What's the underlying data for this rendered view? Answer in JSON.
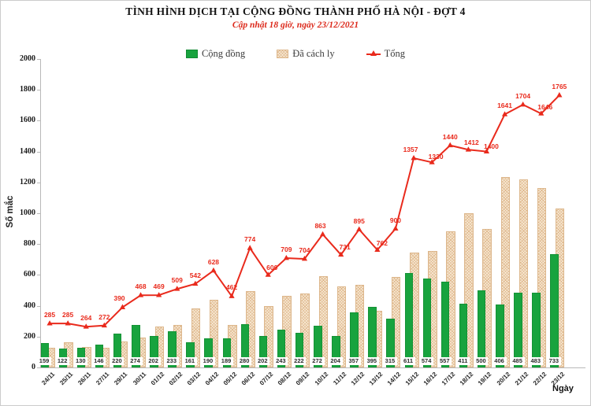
{
  "header": {
    "title": "TÌNH HÌNH DỊCH TẠI CỘNG ĐỒNG THÀNH PHỐ HÀ NỘI - ĐỢT 4",
    "subtitle": "Cập nhật 18 giờ, ngày 23/12/2021"
  },
  "colors": {
    "community_green": "#18a33e",
    "quarantine_tan": "#f8ead5",
    "quarantine_border": "#ddb78c",
    "total_red": "#e92a1c"
  },
  "chart_data": {
    "type": "bar",
    "title": "TÌNH HÌNH DỊCH TẠI CỘNG ĐỒNG THÀNH PHỐ HÀ NỘI - ĐỢT 4",
    "subtitle": "Cập nhật 18 giờ, ngày 23/12/2021",
    "xlabel": "Ngày",
    "ylabel": "Số mắc",
    "ylim": [
      0,
      2000
    ],
    "ytick_step": 200,
    "grid": false,
    "legend_position": "top",
    "categories": [
      "24/11",
      "25/11",
      "26/11",
      "27/11",
      "29/11",
      "30/11",
      "01/12",
      "02/12",
      "03/12",
      "04/12",
      "05/12",
      "06/12",
      "07/12",
      "08/12",
      "09/12",
      "10/12",
      "11/12",
      "12/12",
      "13/12",
      "14/12",
      "15/12",
      "16/12",
      "17/12",
      "18/12",
      "19/12",
      "20/12",
      "21/12",
      "22/12",
      "23/12"
    ],
    "series": [
      {
        "name": "Cộng đồng",
        "type": "bar",
        "color": "#18a33e",
        "values": [
          159,
          122,
          130,
          146,
          220,
          274,
          202,
          233,
          161,
          190,
          189,
          280,
          202,
          243,
          222,
          272,
          204,
          357,
          395,
          315,
          611,
          574,
          557,
          411,
          500,
          406,
          485,
          483,
          733
        ]
      },
      {
        "name": "Đã cách ly",
        "type": "bar",
        "color": "#f8ead5",
        "values": [
          126,
          163,
          134,
          126,
          170,
          194,
          267,
          276,
          381,
          438,
          273,
          494,
          398,
          466,
          482,
          591,
          527,
          538,
          367,
          585,
          746,
          756,
          883,
          1001,
          900,
          1235,
          1219,
          1163,
          1032
        ]
      },
      {
        "name": "Tổng",
        "type": "line",
        "color": "#e92a1c",
        "values": [
          285,
          285,
          264,
          272,
          390,
          468,
          469,
          509,
          542,
          628,
          462,
          774,
          600,
          709,
          704,
          863,
          731,
          895,
          762,
          900,
          1357,
          1330,
          1440,
          1412,
          1400,
          1641,
          1704,
          1646,
          1765
        ]
      }
    ]
  }
}
